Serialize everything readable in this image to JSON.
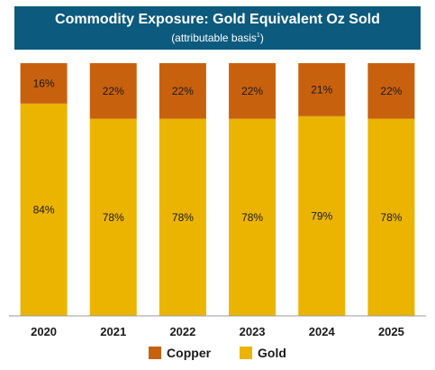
{
  "header": {
    "title": "Commodity Exposure: Gold Equivalent Oz Sold",
    "subtitle": "(attributable basis",
    "subtitle_note": "1",
    "subtitle_close": ")"
  },
  "colors": {
    "banner": "#0c5a7d",
    "copper": "#c8610d",
    "gold": "#ebb400"
  },
  "chart_data": {
    "type": "bar",
    "stacked": true,
    "categories": [
      "2020",
      "2021",
      "2022",
      "2023",
      "2024",
      "2025"
    ],
    "series": [
      {
        "name": "Gold",
        "values": [
          84,
          78,
          78,
          78,
          79,
          78
        ],
        "labels": [
          "84%",
          "78%",
          "78%",
          "78%",
          "79%",
          "78%"
        ],
        "color": "#ebb400"
      },
      {
        "name": "Copper",
        "values": [
          16,
          22,
          22,
          22,
          21,
          22
        ],
        "labels": [
          "16%",
          "22%",
          "22%",
          "22%",
          "21%",
          "22%"
        ],
        "color": "#c8610d"
      }
    ],
    "title": "Commodity Exposure: Gold Equivalent Oz Sold",
    "subtitle": "(attributable basis1)",
    "ylim": [
      0,
      100
    ],
    "grid": false,
    "legend_position": "bottom"
  },
  "legend": [
    {
      "label": "Copper",
      "color": "#c8610d"
    },
    {
      "label": "Gold",
      "color": "#ebb400"
    }
  ]
}
